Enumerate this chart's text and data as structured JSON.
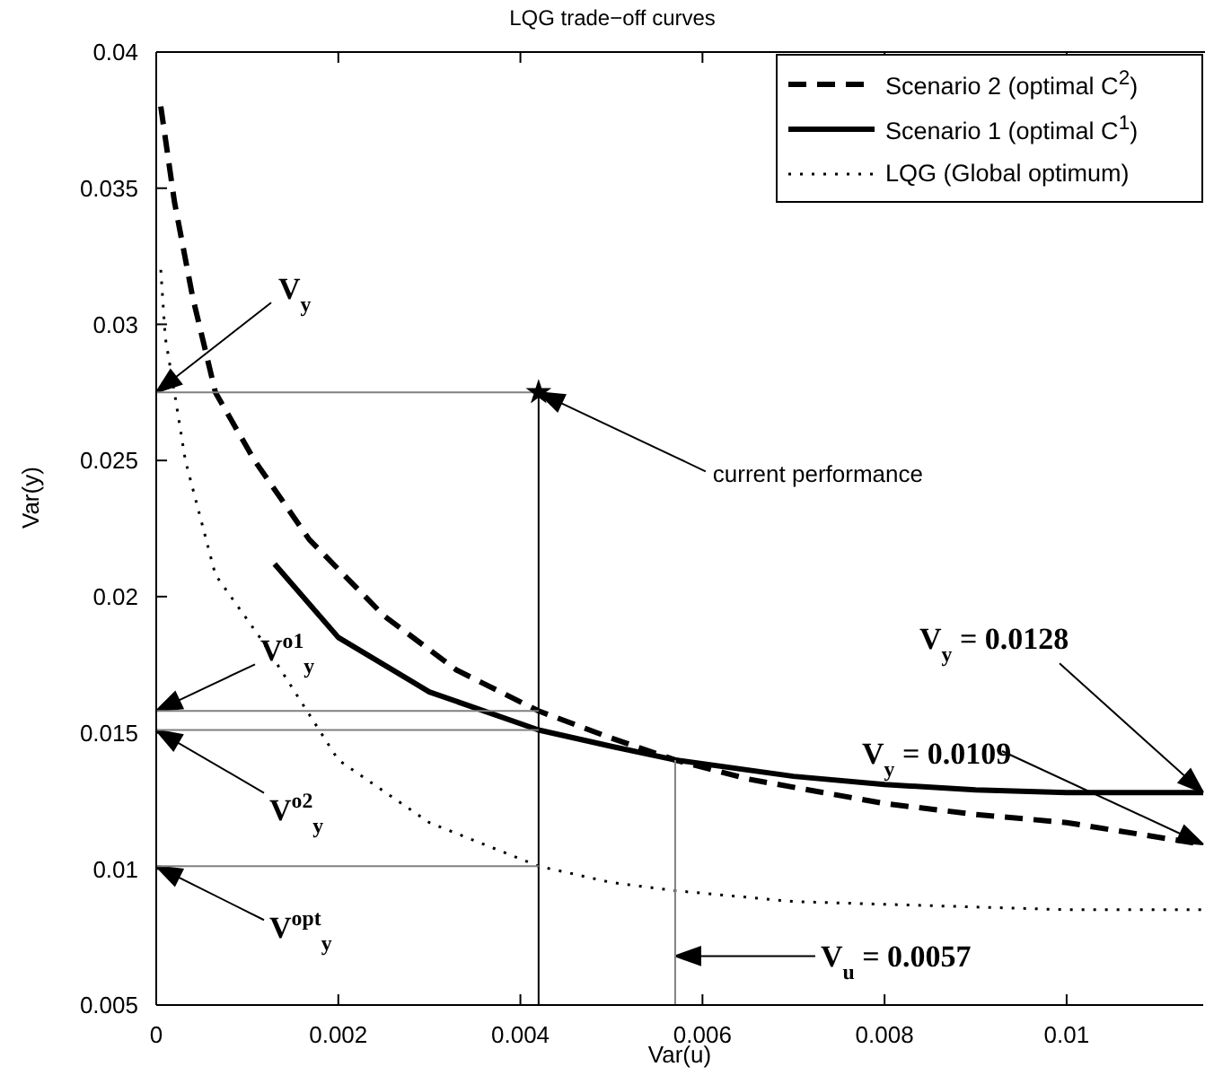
{
  "chart_data": {
    "type": "line",
    "title": "LQG trade−off curves",
    "xlabel": "Var(u)",
    "ylabel": "Var(y)",
    "xlim": [
      0,
      0.0115
    ],
    "xticks": [
      0,
      0.002,
      0.004,
      0.006,
      0.008,
      0.01
    ],
    "ylim": [
      0.005,
      0.04
    ],
    "yticks": [
      0.005,
      0.01,
      0.015,
      0.02,
      0.025,
      0.03,
      0.035,
      0.04
    ],
    "grid": false,
    "legend": "top right",
    "marker": "none",
    "series": [
      {
        "name": "Scenario 2 (optimal C$^{2}$)",
        "color": "#000000",
        "line_style": "dashed",
        "x": [
          5e-05,
          0.0002,
          0.0004,
          0.00065,
          0.00108,
          0.00168,
          0.0025,
          0.0033,
          0.0042,
          0.005,
          0.0057,
          0.0065,
          0.008,
          0.009,
          0.01,
          0.0115
        ],
        "values": [
          0.038,
          0.0345,
          0.031,
          0.0275,
          0.025,
          0.0221,
          0.0193,
          0.0173,
          0.0158,
          0.0148,
          0.014,
          0.0133,
          0.0124,
          0.012,
          0.0117,
          0.0109
        ]
      },
      {
        "name": "Scenario 1 (optimal C$^{1}$)",
        "color": "#000000",
        "line_style": "solid",
        "x": [
          0.0013,
          0.002,
          0.003,
          0.0042,
          0.005,
          0.0057,
          0.007,
          0.008,
          0.009,
          0.01,
          0.0115
        ],
        "values": [
          0.0212,
          0.0185,
          0.0165,
          0.0151,
          0.0145,
          0.014,
          0.0134,
          0.0131,
          0.0129,
          0.0128,
          0.0128
        ]
      },
      {
        "name": "LQG (Global optimum)",
        "color": "#000000",
        "line_style": "dotted",
        "x": [
          5e-05,
          0.0001,
          0.0002,
          0.00032,
          0.00065,
          0.00116,
          0.002,
          0.003,
          0.0042,
          0.005,
          0.0057,
          0.007,
          0.008,
          0.01,
          0.0115
        ],
        "values": [
          0.032,
          0.0295,
          0.0275,
          0.025,
          0.0208,
          0.0184,
          0.014,
          0.0117,
          0.0101,
          0.0095,
          0.0092,
          0.0088,
          0.0087,
          0.0085,
          0.0085
        ]
      },
      {
        "type": "line",
        "color": "#808080",
        "line_style": "solid",
        "x": [
          0,
          0.0042
        ],
        "values": [
          0.0275,
          0.0275
        ]
      },
      {
        "type": "line",
        "color": "#000000",
        "line_style": "solid",
        "x": [
          0.0042,
          0.0042
        ],
        "values": [
          0.005,
          0.0275
        ]
      },
      {
        "type": "line",
        "color": "#808080",
        "line_style": "solid",
        "x": [
          0,
          0.0042
        ],
        "values": [
          0.0158,
          0.0158
        ]
      },
      {
        "type": "line",
        "color": "#808080",
        "line_style": "solid",
        "x": [
          0,
          0.0042
        ],
        "values": [
          0.0151,
          0.0151
        ]
      },
      {
        "type": "line",
        "color": "#808080",
        "line_style": "solid",
        "x": [
          0,
          0.0042
        ],
        "values": [
          0.0101,
          0.0101
        ]
      },
      {
        "type": "line",
        "color": "#808080",
        "line_style": "solid",
        "x": [
          0.0057,
          0.0057
        ],
        "values": [
          0.005,
          0.014
        ]
      },
      {
        "type": "scatter",
        "marker": "star",
        "color": "#000000",
        "x": [
          0.0042
        ],
        "values": [
          0.0275
        ]
      }
    ],
    "annotations": [
      {
        "text": "V$_{y}$",
        "x": 0,
        "y": 0.0275
      },
      {
        "text": "current performance",
        "x": 0.0042,
        "y": 0.0275
      },
      {
        "text": "V$^{o1}$$_{y}$",
        "x": 0,
        "y": 0.0158
      },
      {
        "text": "V$^{o2}$$_{y}$",
        "x": 0,
        "y": 0.0151
      },
      {
        "text": "V$^{opt}$$_{y}$",
        "x": 0,
        "y": 0.0101
      },
      {
        "text": "V$_{u}$ = 0.0057",
        "x": 0.0057,
        "y": 0.0068
      },
      {
        "text": "V$_{y}$ = 0.0128",
        "x": 0.0115,
        "y": 0.0128
      },
      {
        "text": "V$_{y}$ = 0.0109",
        "x": 0.0115,
        "y": 0.0109
      }
    ]
  }
}
